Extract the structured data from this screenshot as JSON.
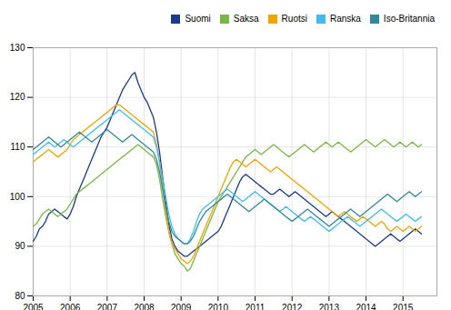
{
  "chart_data": {
    "type": "line",
    "xlim": [
      2005.0,
      2015.917
    ],
    "ylim": [
      80,
      130
    ],
    "xticks": [
      2005,
      2006,
      2007,
      2008,
      2009,
      2010,
      2011,
      2012,
      2013,
      2014,
      2015
    ],
    "yticks": [
      80,
      90,
      100,
      110,
      120,
      130
    ],
    "grid": true,
    "legend": "upper right",
    "x": [
      2005.0,
      2005.0833333333333,
      2005.1666666666667,
      2005.25,
      2005.3333333333333,
      2005.4166666666667,
      2005.5,
      2005.5833333333333,
      2005.6666666666667,
      2005.75,
      2005.8333333333333,
      2005.9166666666667,
      2006.0,
      2006.0833333333333,
      2006.1666666666667,
      2006.25,
      2006.3333333333333,
      2006.4166666666667,
      2006.5,
      2006.5833333333333,
      2006.6666666666667,
      2006.75,
      2006.8333333333333,
      2006.9166666666667,
      2007.0,
      2007.0833333333333,
      2007.1666666666667,
      2007.25,
      2007.3333333333333,
      2007.4166666666667,
      2007.5,
      2007.5833333333333,
      2007.6666666666667,
      2007.75,
      2007.8333333333333,
      2007.9166666666667,
      2008.0,
      2008.0833333333333,
      2008.1666666666667,
      2008.25,
      2008.3333333333333,
      2008.4166666666667,
      2008.5,
      2008.5833333333333,
      2008.6666666666667,
      2008.75,
      2008.8333333333333,
      2008.9166666666667,
      2009.0,
      2009.0833333333333,
      2009.1666666666667,
      2009.25,
      2009.3333333333333,
      2009.4166666666667,
      2009.5,
      2009.5833333333333,
      2009.6666666666667,
      2009.75,
      2009.8333333333333,
      2009.9166666666667,
      2010.0,
      2010.0833333333333,
      2010.1666666666667,
      2010.25,
      2010.3333333333333,
      2010.4166666666667,
      2010.5,
      2010.5833333333333,
      2010.6666666666667,
      2010.75,
      2010.8333333333333,
      2010.9166666666667,
      2011.0,
      2011.0833333333333,
      2011.1666666666667,
      2011.25,
      2011.3333333333333,
      2011.4166666666667,
      2011.5,
      2011.5833333333333,
      2011.6666666666667,
      2011.75,
      2011.8333333333333,
      2011.9166666666667,
      2012.0,
      2012.0833333333333,
      2012.1666666666667,
      2012.25,
      2012.3333333333333,
      2012.4166666666667,
      2012.5,
      2012.5833333333333,
      2012.6666666666667,
      2012.75,
      2012.8333333333333,
      2012.9166666666667,
      2013.0,
      2013.0833333333333,
      2013.1666666666667,
      2013.25,
      2013.3333333333333,
      2013.4166666666667,
      2013.5,
      2013.5833333333333,
      2013.6666666666667,
      2013.75,
      2013.8333333333333,
      2013.9166666666667,
      2014.0,
      2014.0833333333333,
      2014.1666666666667,
      2014.25,
      2014.3333333333333,
      2014.4166666666667,
      2014.5,
      2014.5833333333333,
      2014.6666666666667,
      2014.75,
      2014.8333333333333,
      2014.9166666666667,
      2015.0,
      2015.0833333333333,
      2015.1666666666667,
      2015.25,
      2015.3333333333333,
      2015.4166666666667,
      2015.5
    ],
    "series": [
      {
        "name": "Suomi",
        "color": "#1a3a8a",
        "values": [
          91.0,
          92.0,
          93.5,
          94.0,
          95.0,
          96.5,
          97.0,
          97.5,
          97.0,
          96.5,
          96.0,
          95.5,
          96.5,
          98.0,
          100.0,
          101.5,
          103.0,
          104.5,
          106.0,
          107.5,
          109.0,
          110.5,
          112.0,
          113.0,
          114.0,
          115.5,
          117.0,
          118.5,
          120.0,
          121.5,
          122.5,
          123.5,
          124.5,
          125.0,
          123.0,
          121.5,
          120.0,
          119.0,
          117.5,
          116.0,
          113.0,
          109.0,
          104.0,
          99.0,
          94.5,
          91.5,
          90.0,
          89.0,
          88.5,
          88.0,
          88.0,
          88.5,
          89.0,
          89.5,
          90.0,
          90.5,
          91.0,
          91.5,
          92.0,
          92.5,
          93.0,
          94.0,
          95.5,
          97.0,
          98.5,
          100.0,
          101.5,
          103.0,
          104.0,
          104.5,
          104.0,
          103.5,
          103.0,
          102.5,
          102.0,
          101.5,
          101.0,
          100.5,
          100.5,
          101.0,
          101.5,
          101.0,
          100.5,
          100.0,
          100.5,
          101.0,
          100.5,
          100.0,
          99.5,
          99.0,
          98.5,
          98.0,
          97.5,
          97.0,
          96.5,
          96.0,
          96.5,
          97.0,
          96.5,
          96.0,
          95.5,
          95.0,
          94.5,
          94.0,
          93.5,
          93.0,
          92.5,
          92.0,
          91.5,
          91.0,
          90.5,
          90.0,
          90.5,
          91.0,
          91.5,
          92.0,
          92.5,
          92.0,
          91.5,
          91.0,
          91.5,
          92.0,
          92.5,
          93.0,
          93.5,
          93.0,
          92.5
        ]
      },
      {
        "name": "Saksa",
        "color": "#7ab648",
        "values": [
          94.0,
          94.5,
          95.5,
          96.5,
          97.0,
          97.5,
          97.0,
          96.5,
          96.0,
          96.5,
          97.0,
          97.5,
          98.5,
          99.5,
          100.5,
          101.0,
          101.5,
          102.0,
          102.5,
          103.0,
          103.5,
          104.0,
          104.5,
          105.0,
          105.5,
          106.0,
          106.5,
          107.0,
          107.5,
          108.0,
          108.5,
          109.0,
          109.5,
          110.0,
          110.5,
          110.0,
          109.5,
          109.0,
          108.5,
          108.0,
          106.5,
          103.5,
          99.5,
          96.0,
          93.0,
          90.5,
          88.5,
          87.5,
          86.5,
          86.0,
          85.0,
          85.5,
          87.0,
          88.5,
          90.0,
          91.5,
          93.0,
          94.5,
          96.0,
          97.5,
          99.0,
          100.0,
          101.0,
          102.0,
          103.0,
          104.0,
          105.0,
          106.0,
          107.0,
          108.0,
          108.5,
          109.0,
          109.5,
          109.0,
          108.5,
          109.0,
          109.5,
          110.0,
          110.5,
          110.0,
          109.5,
          109.0,
          108.5,
          108.0,
          108.5,
          109.0,
          109.5,
          110.0,
          110.5,
          110.0,
          109.5,
          109.0,
          109.5,
          110.0,
          110.5,
          111.0,
          110.5,
          110.0,
          110.5,
          111.0,
          110.5,
          110.0,
          109.5,
          109.0,
          109.5,
          110.0,
          110.5,
          111.0,
          111.5,
          111.0,
          110.5,
          110.0,
          110.5,
          111.0,
          111.5,
          111.0,
          110.5,
          110.0,
          110.5,
          111.0,
          110.5,
          110.0,
          110.5,
          111.0,
          110.5,
          110.0,
          110.5
        ]
      },
      {
        "name": "Ruotsi",
        "color": "#f0a500",
        "values": [
          107.0,
          107.5,
          108.0,
          108.5,
          109.0,
          109.5,
          109.0,
          108.5,
          108.0,
          108.5,
          109.0,
          109.5,
          110.5,
          111.5,
          112.0,
          112.5,
          113.0,
          113.5,
          114.0,
          114.5,
          115.0,
          115.5,
          116.0,
          116.5,
          117.0,
          117.5,
          118.0,
          118.5,
          118.5,
          118.0,
          117.5,
          117.0,
          116.5,
          116.0,
          115.5,
          115.0,
          114.5,
          114.0,
          113.5,
          113.0,
          110.5,
          107.0,
          102.0,
          97.0,
          93.0,
          90.5,
          89.5,
          88.5,
          87.5,
          87.0,
          86.5,
          87.0,
          88.0,
          89.5,
          91.0,
          92.5,
          94.0,
          95.5,
          97.0,
          98.5,
          100.0,
          101.5,
          103.0,
          104.5,
          106.0,
          107.0,
          107.5,
          107.0,
          106.5,
          106.0,
          106.5,
          107.0,
          107.5,
          107.0,
          106.5,
          106.0,
          105.5,
          105.0,
          105.5,
          106.0,
          105.5,
          105.0,
          104.5,
          104.0,
          103.5,
          103.0,
          102.5,
          102.0,
          101.5,
          101.0,
          100.5,
          100.0,
          99.5,
          99.0,
          98.5,
          98.0,
          97.5,
          97.0,
          96.5,
          96.0,
          96.5,
          97.0,
          96.5,
          96.0,
          95.5,
          95.0,
          95.5,
          96.0,
          95.5,
          95.0,
          94.5,
          94.0,
          94.5,
          95.0,
          94.5,
          93.5,
          93.0,
          93.5,
          94.0,
          93.5,
          93.0,
          93.5,
          94.0,
          93.5,
          93.0,
          93.5,
          94.0
        ]
      },
      {
        "name": "Ranska",
        "color": "#44bbee",
        "values": [
          108.5,
          109.0,
          109.5,
          110.0,
          110.5,
          111.0,
          110.5,
          110.0,
          110.5,
          111.0,
          111.5,
          111.0,
          110.5,
          110.0,
          110.5,
          111.0,
          111.5,
          112.0,
          112.5,
          113.0,
          113.5,
          114.0,
          114.5,
          115.0,
          115.5,
          116.0,
          116.5,
          117.0,
          117.5,
          117.0,
          116.5,
          116.0,
          115.5,
          115.0,
          114.5,
          114.0,
          113.5,
          113.0,
          112.5,
          112.0,
          110.0,
          107.0,
          103.5,
          100.0,
          96.5,
          94.0,
          92.5,
          91.5,
          91.0,
          90.5,
          90.5,
          91.5,
          93.0,
          95.0,
          96.5,
          97.5,
          98.0,
          98.5,
          99.0,
          99.5,
          100.0,
          100.5,
          101.0,
          101.5,
          101.0,
          100.5,
          100.0,
          99.5,
          99.0,
          99.5,
          100.0,
          100.5,
          101.0,
          100.5,
          100.0,
          99.5,
          99.0,
          98.5,
          98.0,
          97.5,
          97.0,
          97.5,
          98.0,
          97.5,
          97.0,
          96.5,
          96.0,
          95.5,
          95.0,
          95.5,
          96.0,
          95.5,
          95.0,
          94.5,
          94.0,
          93.5,
          93.0,
          93.5,
          94.0,
          94.5,
          95.0,
          95.5,
          96.0,
          95.5,
          95.0,
          94.5,
          94.0,
          94.5,
          95.0,
          95.5,
          96.0,
          96.5,
          97.0,
          97.5,
          97.0,
          96.5,
          96.0,
          95.5,
          95.0,
          95.5,
          96.0,
          96.5,
          96.0,
          95.5,
          95.0,
          95.5,
          96.0
        ]
      },
      {
        "name": "Iso-Britannia",
        "color": "#338899",
        "values": [
          109.5,
          110.0,
          110.5,
          111.0,
          111.5,
          112.0,
          111.5,
          111.0,
          110.5,
          110.0,
          110.5,
          111.0,
          111.5,
          112.0,
          112.5,
          113.0,
          112.5,
          112.0,
          111.5,
          111.0,
          111.5,
          112.0,
          112.5,
          113.0,
          113.5,
          113.0,
          112.5,
          112.0,
          111.5,
          111.0,
          111.5,
          112.0,
          112.5,
          112.0,
          111.5,
          111.0,
          110.5,
          110.0,
          109.5,
          109.0,
          107.5,
          105.0,
          101.5,
          98.0,
          95.0,
          93.0,
          92.0,
          91.5,
          91.0,
          90.5,
          90.5,
          91.0,
          92.0,
          93.5,
          95.0,
          96.0,
          97.0,
          97.5,
          98.0,
          98.5,
          99.0,
          99.5,
          100.0,
          100.5,
          100.0,
          99.5,
          99.0,
          98.5,
          98.0,
          97.5,
          97.0,
          97.5,
          98.0,
          98.5,
          99.0,
          99.5,
          99.0,
          98.5,
          98.0,
          97.5,
          97.0,
          96.5,
          96.0,
          95.5,
          95.0,
          95.5,
          96.0,
          96.5,
          97.0,
          97.5,
          97.0,
          96.5,
          96.0,
          95.5,
          95.0,
          94.5,
          94.0,
          94.5,
          95.0,
          95.5,
          96.0,
          96.5,
          97.0,
          97.5,
          97.0,
          96.5,
          96.0,
          96.5,
          97.0,
          97.5,
          98.0,
          98.5,
          99.0,
          99.5,
          100.0,
          100.5,
          100.0,
          99.5,
          99.0,
          99.5,
          100.0,
          100.5,
          101.0,
          100.5,
          100.0,
          100.5,
          101.0
        ]
      }
    ]
  }
}
